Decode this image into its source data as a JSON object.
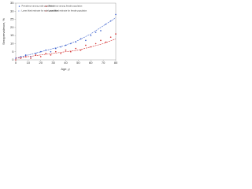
{
  "chart_data": {
    "type": "scatter",
    "x_label": "Age, y",
    "y_label": "Seroprevalence, %",
    "xlim": [
      0,
      80
    ],
    "xticks": [
      0,
      10,
      20,
      30,
      40,
      50,
      60,
      70,
      80
    ],
    "ylim": [
      0,
      35
    ],
    "yticks": [
      0,
      5,
      10,
      15,
      20,
      25,
      30,
      35
    ],
    "legend": "upper-left",
    "series": [
      {
        "name": "Prevalence among male population",
        "color": "#3a5fcd",
        "mode": "markers",
        "x": [
          0,
          4,
          8,
          12,
          16,
          20,
          24,
          28,
          32,
          36,
          40,
          44,
          48,
          52,
          56,
          60,
          64,
          68,
          72,
          76,
          80
        ],
        "values": [
          1,
          2,
          3,
          2,
          4,
          5,
          6,
          5,
          7,
          8,
          9,
          10,
          11,
          13,
          12,
          15,
          17,
          18,
          22,
          24,
          28
        ]
      },
      {
        "name": "Loess fitted estimate for male population",
        "color": "#3a5fcd",
        "mode": "line",
        "x": [
          0,
          10,
          20,
          30,
          40,
          50,
          60,
          70,
          80
        ],
        "values": [
          1,
          3,
          5,
          7,
          9,
          12,
          16,
          21,
          26
        ]
      },
      {
        "name": "Prevalence among female population",
        "color": "#d22b2b",
        "mode": "markers",
        "x": [
          0,
          4,
          8,
          12,
          16,
          20,
          24,
          28,
          32,
          36,
          40,
          44,
          48,
          52,
          56,
          60,
          64,
          68,
          72,
          76,
          80
        ],
        "values": [
          0,
          1,
          2,
          1,
          3,
          2,
          4,
          3,
          5,
          4,
          6,
          5,
          7,
          6,
          9,
          8,
          10,
          12,
          11,
          14,
          16
        ]
      },
      {
        "name": "Loess fitted estimate for female population",
        "color": "#d22b2b",
        "mode": "line",
        "x": [
          0,
          10,
          20,
          30,
          40,
          50,
          60,
          70,
          80
        ],
        "values": [
          1,
          2,
          3,
          4,
          5,
          6,
          8,
          10,
          13
        ]
      }
    ]
  }
}
